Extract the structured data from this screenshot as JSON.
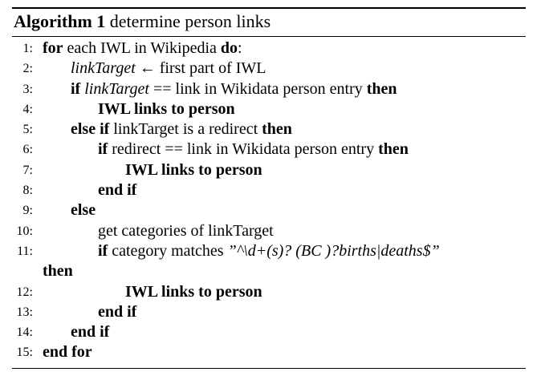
{
  "algorithm": {
    "label": "Algorithm 1",
    "title": "determine person links"
  },
  "lines": [
    {
      "num": "1:",
      "kw1": "for",
      "text": " each IWL in Wikipedia ",
      "kw2": "do",
      "tail": ":"
    },
    {
      "num": "2:",
      "var": "linkTarget",
      "text": " ← first part of IWL"
    },
    {
      "num": "3:",
      "kw1": "if",
      "var": "linkTarget",
      "text": " == link in Wikidata person entry  ",
      "kw2": "then"
    },
    {
      "num": "4:",
      "bold": "IWL links to person"
    },
    {
      "num": "5:",
      "kw1": "else if",
      "text": " linkTarget is a redirect ",
      "kw2": "then"
    },
    {
      "num": "6:",
      "kw1": "if",
      "text": " redirect == link in Wikidata person entry  ",
      "kw2": "then"
    },
    {
      "num": "7:",
      "bold": "IWL links to person"
    },
    {
      "num": "8:",
      "bold": "end if"
    },
    {
      "num": "9:",
      "bold": "else"
    },
    {
      "num": "10:",
      "text": "get categories of linkTarget"
    },
    {
      "num": "11:",
      "kw1": "if",
      "text": " category matches ",
      "regex": "”^\\d+(s)? (BC )?births|deaths$”"
    },
    {
      "num": "",
      "bold": "then"
    },
    {
      "num": "12:",
      "bold": "IWL links to person"
    },
    {
      "num": "13:",
      "bold": "end if"
    },
    {
      "num": "14:",
      "bold": "end if"
    },
    {
      "num": "15:",
      "bold": "end for"
    }
  ]
}
